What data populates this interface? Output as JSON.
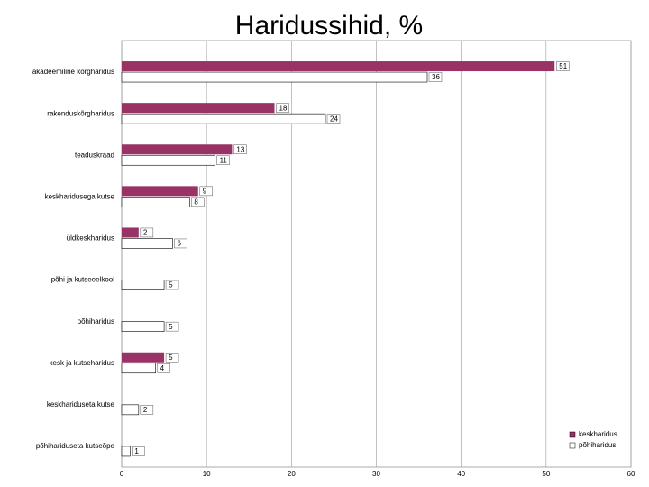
{
  "chart_data": {
    "type": "hbar",
    "title": "Haridussihid, %",
    "categories": [
      "akadeemiline kõrgharidus",
      "rakenduskõrgharidus",
      "teaduskraad",
      "keskharidusega kutse",
      "üldkeskharidus",
      "põhi ja kutseeelkool",
      "põhiharidus",
      "kesk ja kutseharidus",
      "keskhariduseta kutse",
      "põhihariduseta kutseõpe"
    ],
    "series": [
      {
        "name": "keskharidus",
        "color": "#993366",
        "values": [
          51,
          18,
          13,
          9,
          2,
          null,
          null,
          5,
          null,
          null
        ]
      },
      {
        "name": "põhiharidus",
        "color": "#ffffff",
        "values": [
          36,
          24,
          11,
          8,
          6,
          5,
          5,
          4,
          2,
          1
        ]
      }
    ],
    "xlim": [
      0,
      60
    ],
    "xticks": [
      0,
      10,
      20,
      30,
      40,
      50,
      60
    ],
    "grid": true,
    "legend": "lower right"
  }
}
